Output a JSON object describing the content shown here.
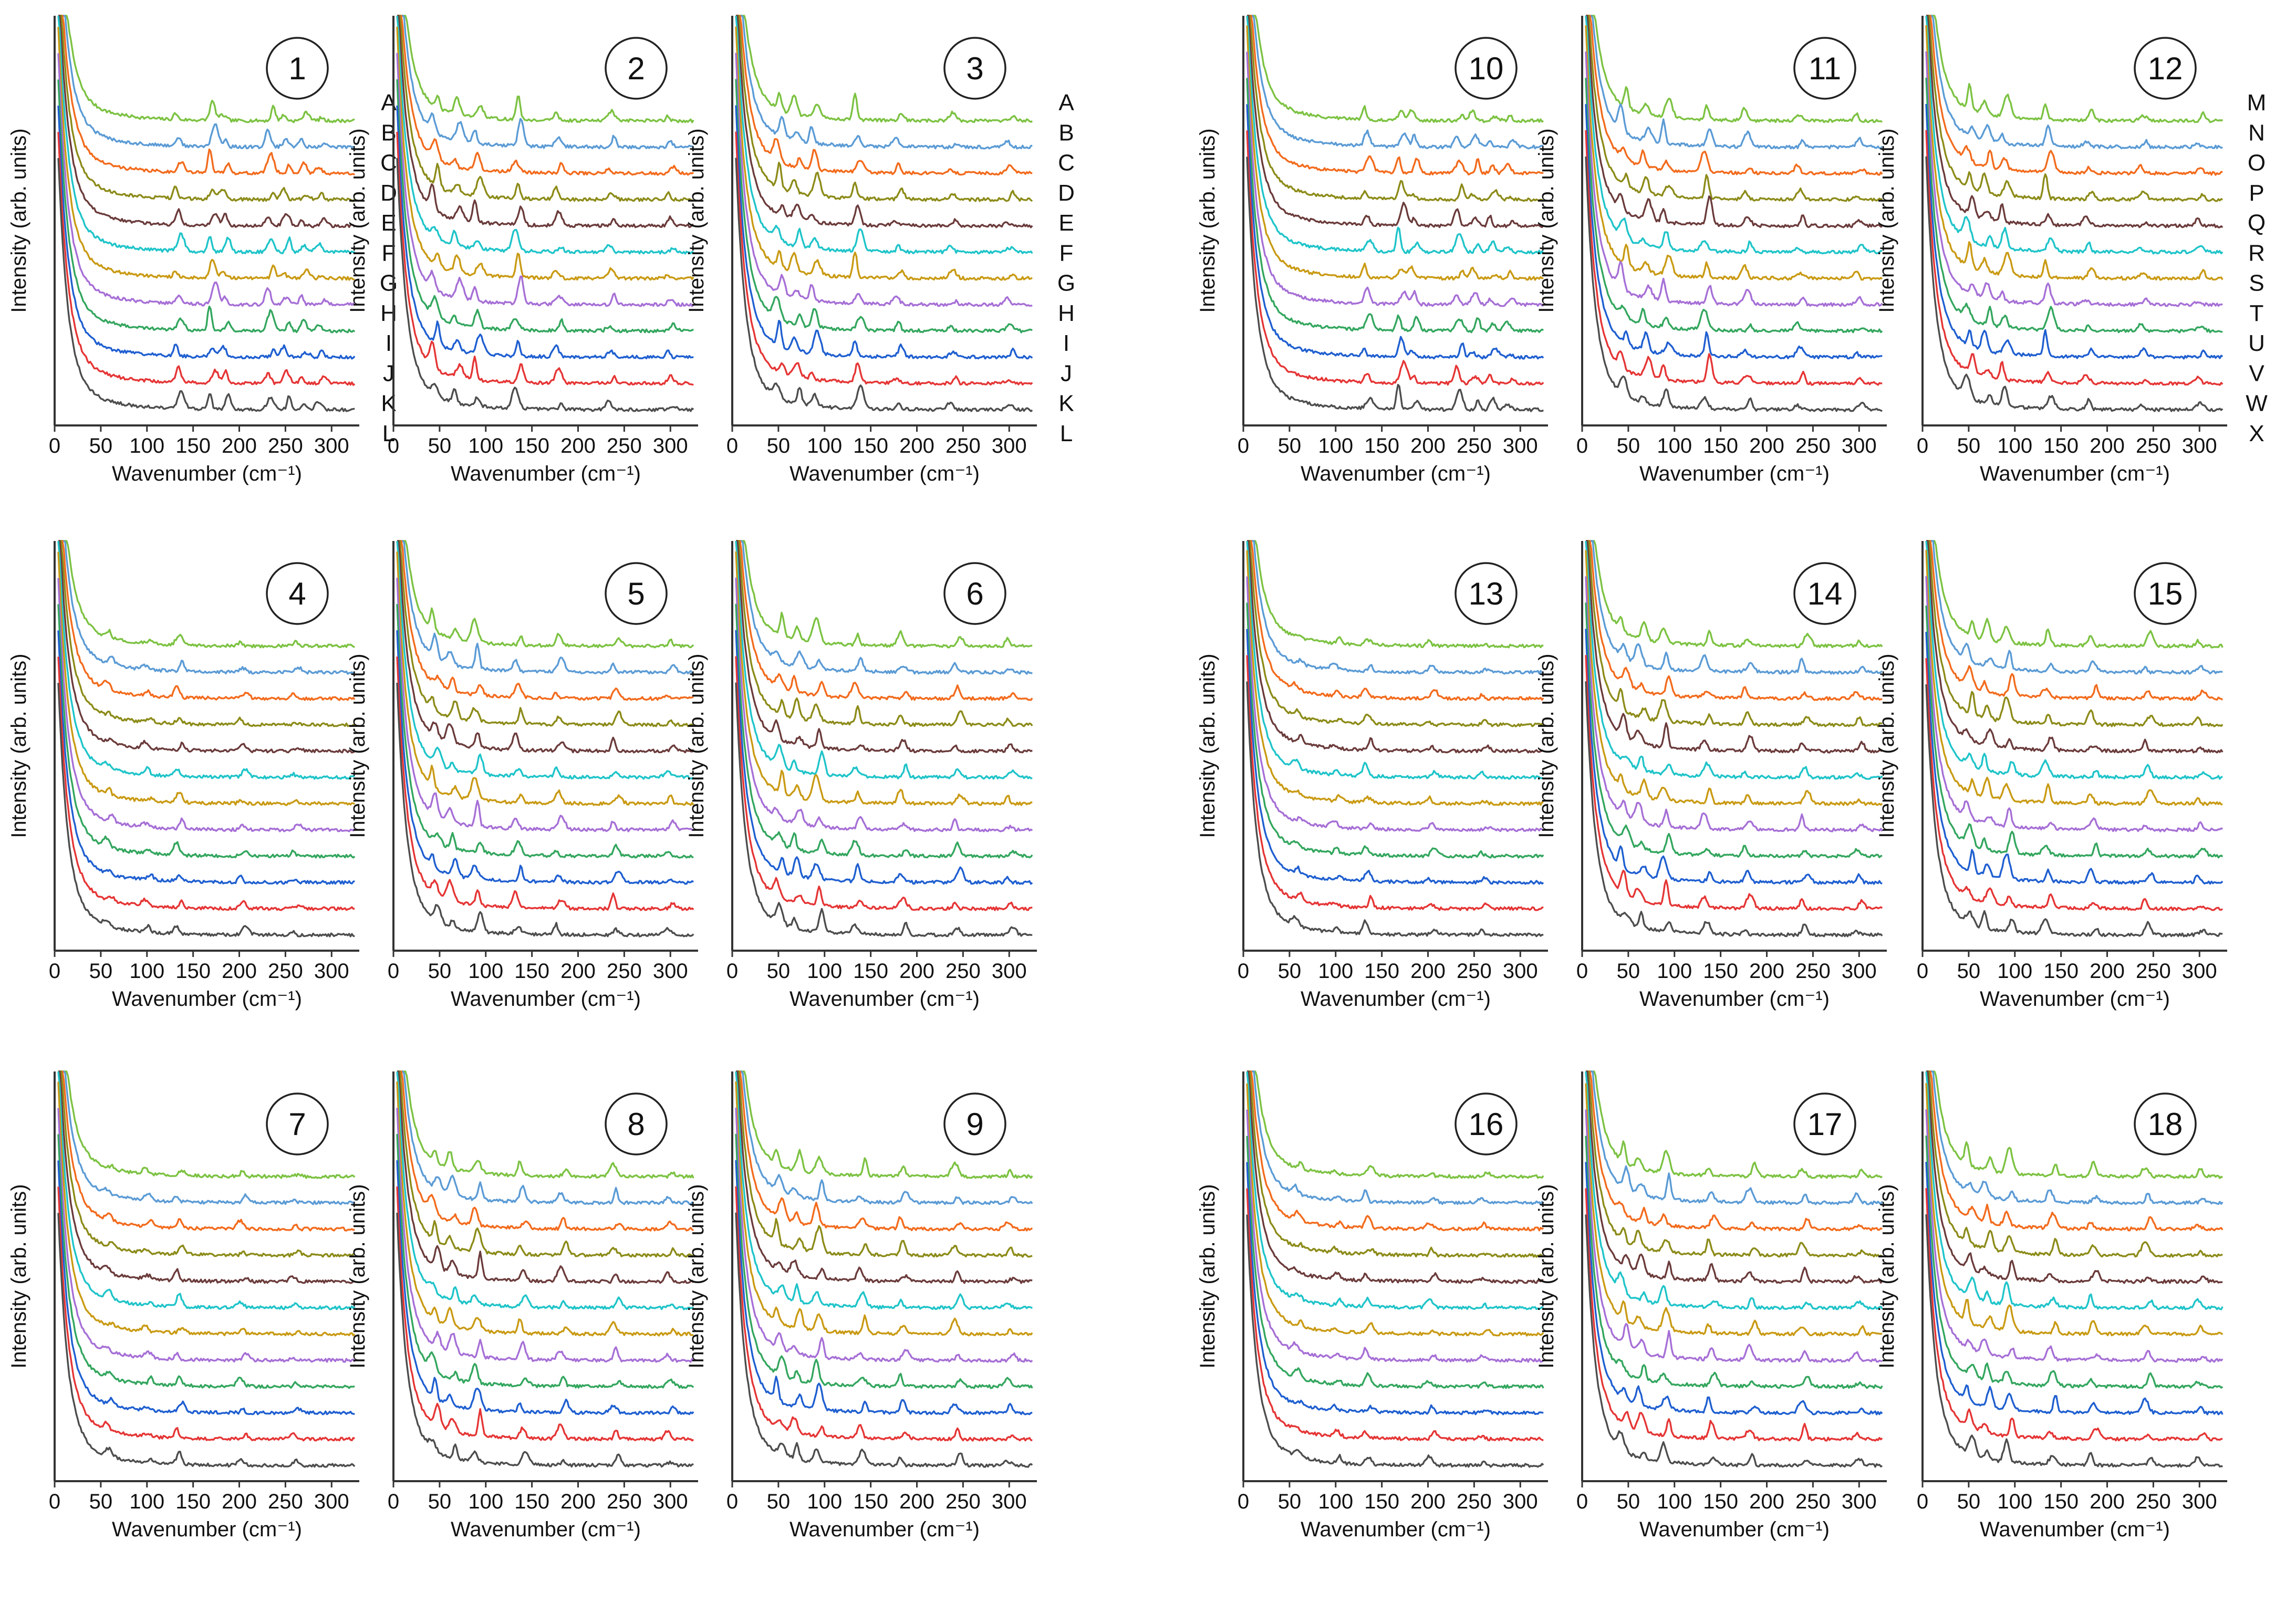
{
  "colors": [
    "#7cc242",
    "#5b9bd5",
    "#f26b1d",
    "#8c8b19",
    "#6b3b3b",
    "#1fc4c9",
    "#c99a13",
    "#a66fd6",
    "#33a65e",
    "#1f5fd0",
    "#e53535",
    "#4d4d4d"
  ],
  "traces": [
    "A",
    "B",
    "C",
    "D",
    "E",
    "F",
    "G",
    "H",
    "I",
    "J",
    "K",
    "L",
    "M",
    "N",
    "O",
    "P",
    "Q",
    "R",
    "S",
    "T",
    "U",
    "V",
    "W",
    "X"
  ],
  "chart_data": {
    "type": "line",
    "description_free": true,
    "xlabel": "Wavenumber (cm⁻¹)",
    "ylabel": "Intensity (arb. units)",
    "xlim": [
      0,
      330
    ],
    "xticks": [
      "0",
      "50",
      "100",
      "150",
      "200",
      "250",
      "300"
    ],
    "stacked_offset": true,
    "series_per_panel": 12,
    "panels": [
      {
        "number": "1",
        "labels": [
          "A",
          "B",
          "C",
          "D",
          "E",
          "F",
          "G",
          "H",
          "I",
          "J",
          "K",
          "L"
        ],
        "peaks": [
          [
            135,
            0.6
          ],
          [
            170,
            0.9
          ],
          [
            185,
            0.5
          ],
          [
            235,
            0.7
          ],
          [
            250,
            0.5
          ],
          [
            270,
            0.4
          ],
          [
            290,
            0.3
          ]
        ]
      },
      {
        "number": "2",
        "labels": [],
        "peaks": [
          [
            45,
            0.9
          ],
          [
            70,
            0.7
          ],
          [
            90,
            0.8
          ],
          [
            135,
            1.0
          ],
          [
            180,
            0.5
          ],
          [
            235,
            0.4
          ],
          [
            300,
            0.3
          ]
        ]
      },
      {
        "number": "3",
        "labels": [
          "A",
          "B",
          "C",
          "D",
          "E",
          "F",
          "G",
          "H",
          "I",
          "J",
          "K",
          "L"
        ],
        "peaks": [
          [
            50,
            0.9
          ],
          [
            70,
            0.7
          ],
          [
            90,
            0.8
          ],
          [
            135,
            0.9
          ],
          [
            180,
            0.4
          ],
          [
            240,
            0.3
          ],
          [
            300,
            0.3
          ]
        ]
      },
      {
        "number": "4",
        "labels": [],
        "peaks": [
          [
            60,
            0.3
          ],
          [
            100,
            0.25
          ],
          [
            135,
            0.45
          ],
          [
            205,
            0.3
          ],
          [
            260,
            0.2
          ]
        ]
      },
      {
        "number": "5",
        "labels": [],
        "peaks": [
          [
            45,
            0.8
          ],
          [
            65,
            0.7
          ],
          [
            90,
            0.9
          ],
          [
            135,
            0.6
          ],
          [
            180,
            0.5
          ],
          [
            240,
            0.5
          ],
          [
            300,
            0.3
          ]
        ]
      },
      {
        "number": "6",
        "labels": [],
        "peaks": [
          [
            50,
            0.8
          ],
          [
            70,
            0.7
          ],
          [
            95,
            0.9
          ],
          [
            135,
            0.6
          ],
          [
            185,
            0.5
          ],
          [
            245,
            0.5
          ],
          [
            300,
            0.3
          ]
        ]
      },
      {
        "number": "7",
        "labels": [],
        "peaks": [
          [
            60,
            0.3
          ],
          [
            100,
            0.25
          ],
          [
            135,
            0.45
          ],
          [
            205,
            0.3
          ],
          [
            260,
            0.2
          ]
        ]
      },
      {
        "number": "8",
        "labels": [],
        "peaks": [
          [
            45,
            0.8
          ],
          [
            65,
            0.7
          ],
          [
            90,
            0.9
          ],
          [
            140,
            0.6
          ],
          [
            185,
            0.5
          ],
          [
            240,
            0.5
          ],
          [
            300,
            0.3
          ]
        ]
      },
      {
        "number": "9",
        "labels": [],
        "peaks": [
          [
            50,
            0.8
          ],
          [
            70,
            0.7
          ],
          [
            95,
            0.9
          ],
          [
            140,
            0.6
          ],
          [
            185,
            0.5
          ],
          [
            245,
            0.5
          ],
          [
            300,
            0.3
          ]
        ]
      },
      {
        "number": "10",
        "labels": [],
        "peaks": [
          [
            135,
            0.6
          ],
          [
            170,
            0.9
          ],
          [
            185,
            0.5
          ],
          [
            235,
            0.7
          ],
          [
            250,
            0.5
          ],
          [
            270,
            0.4
          ],
          [
            290,
            0.3
          ]
        ]
      },
      {
        "number": "11",
        "labels": [],
        "peaks": [
          [
            45,
            0.9
          ],
          [
            70,
            0.7
          ],
          [
            90,
            0.8
          ],
          [
            135,
            1.0
          ],
          [
            180,
            0.5
          ],
          [
            235,
            0.4
          ],
          [
            300,
            0.3
          ]
        ]
      },
      {
        "number": "12",
        "labels": [
          "M",
          "N",
          "O",
          "P",
          "Q",
          "R",
          "S",
          "T",
          "U",
          "V",
          "W",
          "X"
        ],
        "peaks": [
          [
            50,
            0.9
          ],
          [
            70,
            0.7
          ],
          [
            90,
            0.8
          ],
          [
            135,
            0.9
          ],
          [
            180,
            0.4
          ],
          [
            240,
            0.3
          ],
          [
            300,
            0.3
          ]
        ]
      },
      {
        "number": "13",
        "labels": [],
        "peaks": [
          [
            60,
            0.3
          ],
          [
            100,
            0.25
          ],
          [
            135,
            0.45
          ],
          [
            205,
            0.3
          ],
          [
            260,
            0.2
          ]
        ]
      },
      {
        "number": "14",
        "labels": [],
        "peaks": [
          [
            45,
            0.8
          ],
          [
            65,
            0.7
          ],
          [
            90,
            0.9
          ],
          [
            135,
            0.6
          ],
          [
            180,
            0.5
          ],
          [
            240,
            0.5
          ],
          [
            300,
            0.3
          ]
        ]
      },
      {
        "number": "15",
        "labels": [],
        "peaks": [
          [
            50,
            0.8
          ],
          [
            70,
            0.7
          ],
          [
            95,
            0.9
          ],
          [
            135,
            0.6
          ],
          [
            185,
            0.5
          ],
          [
            245,
            0.5
          ],
          [
            300,
            0.3
          ]
        ]
      },
      {
        "number": "16",
        "labels": [],
        "peaks": [
          [
            60,
            0.3
          ],
          [
            100,
            0.25
          ],
          [
            135,
            0.45
          ],
          [
            205,
            0.3
          ],
          [
            260,
            0.2
          ]
        ]
      },
      {
        "number": "17",
        "labels": [],
        "peaks": [
          [
            45,
            0.8
          ],
          [
            65,
            0.7
          ],
          [
            90,
            0.9
          ],
          [
            140,
            0.6
          ],
          [
            185,
            0.5
          ],
          [
            240,
            0.5
          ],
          [
            300,
            0.3
          ]
        ]
      },
      {
        "number": "18",
        "labels": [],
        "peaks": [
          [
            50,
            0.8
          ],
          [
            70,
            0.7
          ],
          [
            95,
            0.9
          ],
          [
            140,
            0.6
          ],
          [
            185,
            0.5
          ],
          [
            245,
            0.5
          ],
          [
            300,
            0.3
          ]
        ]
      }
    ]
  }
}
